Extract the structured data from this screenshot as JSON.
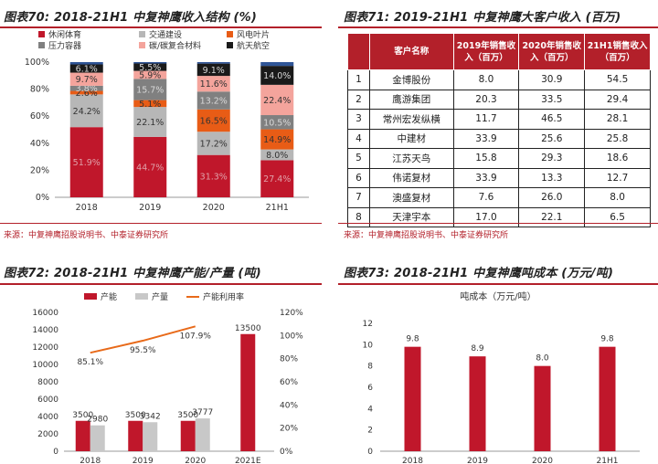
{
  "fig70": {
    "title": "图表70: 2018-21H1 中复神鹰收入结构 (%)",
    "source": "来源：中复神鹰招股说明书、中泰证券研究所",
    "chart_data": {
      "type": "bar",
      "stacked": true,
      "categories": [
        "2018",
        "2019",
        "2020",
        "21H1"
      ],
      "series": [
        {
          "name": "休闲体育",
          "color": "#c0172b",
          "values": [
            51.9,
            44.7,
            31.3,
            27.4
          ]
        },
        {
          "name": "交通建设",
          "color": "#b7b7b7",
          "values": [
            24.2,
            22.1,
            17.2,
            8.0
          ]
        },
        {
          "name": "风电叶片",
          "color": "#e85c16",
          "values": [
            2.6,
            5.1,
            16.5,
            14.9
          ]
        },
        {
          "name": "压力容器",
          "color": "#808080",
          "values": [
            3.8,
            15.7,
            13.2,
            10.5
          ]
        },
        {
          "name": "碳/碳复合材料",
          "color": "#f4a49c",
          "values": [
            9.7,
            5.9,
            11.6,
            22.4
          ]
        },
        {
          "name": "航天航空",
          "color": "#1a1a1a",
          "values": [
            6.1,
            5.5,
            9.1,
            14.0
          ]
        },
        {
          "name": "",
          "color": "#2f5597",
          "values": [
            1.7,
            1.0,
            1.1,
            2.8
          ]
        }
      ],
      "labels": [
        [
          "51.9%",
          "24.2%",
          "2.6%",
          "3.8%",
          "9.7%",
          "6.1%",
          ""
        ],
        [
          "44.7%",
          "22.1%",
          "5.1%",
          "15.7%",
          "5.9%",
          "5.5%",
          ""
        ],
        [
          "31.3%",
          "17.2%",
          "16.5%",
          "13.2%",
          "11.6%",
          "9.1%",
          ""
        ],
        [
          "27.4%",
          "8.0%",
          "14.9%",
          "10.5%",
          "22.4%",
          "14.0%",
          ""
        ]
      ],
      "ylim": [
        0,
        100
      ],
      "yticks": [
        "0%",
        "20%",
        "40%",
        "60%",
        "80%",
        "100%"
      ],
      "legend_position": "top"
    }
  },
  "fig71": {
    "title": "图表71: 2019-21H1 中复神鹰大客户收入 (百万)",
    "source": "来源：中复神鹰招股说明书、中泰证券研究所",
    "headers": [
      "",
      "客户名称",
      "2019年销售收入（百万）",
      "2020年销售收入（百万）",
      "21H1销售收入（百万）"
    ],
    "rows": [
      [
        "1",
        "金博股份",
        "8.0",
        "30.9",
        "54.5"
      ],
      [
        "2",
        "鹰游集团",
        "20.3",
        "33.5",
        "29.4"
      ],
      [
        "3",
        "常州宏发纵横",
        "11.7",
        "46.5",
        "28.1"
      ],
      [
        "4",
        "中建材",
        "33.9",
        "25.6",
        "25.8"
      ],
      [
        "5",
        "江苏天鸟",
        "15.8",
        "29.3",
        "18.6"
      ],
      [
        "6",
        "伟诺复材",
        "33.9",
        "13.3",
        "12.7"
      ],
      [
        "7",
        "澳盛复材",
        "7.6",
        "26.0",
        "8.0"
      ],
      [
        "8",
        "天津宇本",
        "17.0",
        "22.1",
        "6.5"
      ]
    ]
  },
  "fig72": {
    "title": "图表72: 2018-21H1 中复神鹰产能/产量 (吨)",
    "chart_data": {
      "type": "bar",
      "categories": [
        "2018",
        "2019",
        "2020",
        "2021E"
      ],
      "series": [
        {
          "name": "产能",
          "color": "#c0172b",
          "values": [
            3500,
            3500,
            3500,
            13500
          ]
        },
        {
          "name": "产量",
          "color": "#c8c8c8",
          "values": [
            2980,
            3342,
            3777,
            null
          ]
        }
      ],
      "line_series": {
        "name": "产能利用率",
        "color": "#e86a1a",
        "values": [
          85.1,
          95.5,
          107.9
        ],
        "labels": [
          "85.1%",
          "95.5%",
          "107.9%"
        ]
      },
      "ylim": [
        0,
        16000
      ],
      "yticks": [
        "0",
        "2000",
        "4000",
        "6000",
        "8000",
        "10000",
        "12000",
        "14000",
        "16000"
      ],
      "y2lim": [
        0,
        120
      ],
      "y2ticks": [
        "0%",
        "20%",
        "40%",
        "60%",
        "80%",
        "100%",
        "120%"
      ],
      "legend_position": "top"
    }
  },
  "fig73": {
    "title": "图表73: 2018-21H1 中复神鹰吨成本 (万元/吨)",
    "chart_data": {
      "type": "bar",
      "title": "吨成本（万元/吨）",
      "categories": [
        "2018",
        "2019",
        "2020",
        "21H1"
      ],
      "values": [
        9.8,
        8.9,
        8.0,
        9.8
      ],
      "labels": [
        "9.8",
        "8.9",
        "8.0",
        "9.8"
      ],
      "color": "#c0172b",
      "ylim": [
        0,
        12
      ],
      "yticks": [
        "0",
        "2",
        "4",
        "6",
        "8",
        "10",
        "12"
      ]
    }
  }
}
